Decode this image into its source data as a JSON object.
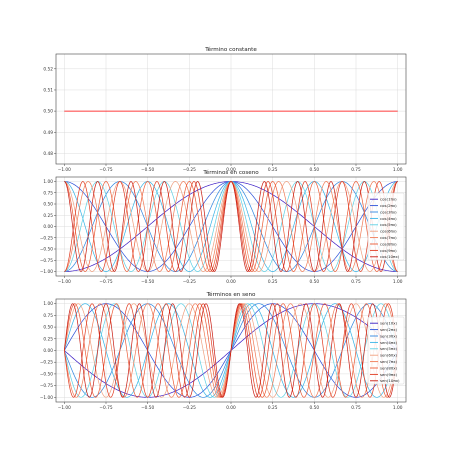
{
  "chart_data": [
    {
      "type": "line",
      "title": "Término constante",
      "xlim": [
        -1.05,
        1.05
      ],
      "ylim": [
        0.475,
        0.527
      ],
      "xticks": [
        -1.0,
        -0.75,
        -0.5,
        -0.25,
        0.0,
        0.25,
        0.5,
        0.75,
        1.0
      ],
      "xtick_labels": [
        "−1.00",
        "−0.75",
        "−0.50",
        "−0.25",
        "0.00",
        "0.25",
        "0.50",
        "0.75",
        "1.00"
      ],
      "yticks": [
        0.48,
        0.49,
        0.5,
        0.51,
        0.52
      ],
      "ytick_labels": [
        "0.48",
        "0.49",
        "0.50",
        "0.51",
        "0.52"
      ],
      "grid": true,
      "legend": null,
      "series": [
        {
          "x": [
            -1.0,
            1.0
          ],
          "values": [
            0.5,
            0.5
          ],
          "color": "#ff0000"
        }
      ]
    },
    {
      "type": "line",
      "title": "Términos en coseno",
      "xlim": [
        -1.05,
        1.05
      ],
      "ylim": [
        -1.1,
        1.1
      ],
      "xticks": [
        -1.0,
        -0.75,
        -0.5,
        -0.25,
        0.0,
        0.25,
        0.5,
        0.75,
        1.0
      ],
      "xtick_labels": [
        "−1.00",
        "−0.75",
        "−0.50",
        "−0.25",
        "0.00",
        "0.25",
        "0.50",
        "0.75",
        "1.00"
      ],
      "yticks": [
        -1.0,
        -0.75,
        -0.5,
        -0.25,
        0.0,
        0.25,
        0.5,
        0.75,
        1.0
      ],
      "ytick_labels": [
        "−1.00",
        "−0.75",
        "−0.50",
        "−0.25",
        "0.00",
        "0.25",
        "0.50",
        "0.75",
        "1.00"
      ],
      "grid": true,
      "legend": "right",
      "function": "cos",
      "series": [
        {
          "name": "cos(1πx)",
          "k": 1,
          "color": "#3b1cc4"
        },
        {
          "name": "cos(2πx)",
          "k": 2,
          "color": "#2a4fd8"
        },
        {
          "name": "cos(3πx)",
          "k": 3,
          "color": "#2f86e0"
        },
        {
          "name": "cos(4πx)",
          "k": 4,
          "color": "#36b3e6"
        },
        {
          "name": "cos(5πx)",
          "k": 5,
          "color": "#5ed0e4"
        },
        {
          "name": "cos(6πx)",
          "k": 6,
          "color": "#f0a080"
        },
        {
          "name": "cos(7πx)",
          "k": 7,
          "color": "#f07a55"
        },
        {
          "name": "cos(8πx)",
          "k": 8,
          "color": "#ec5a35"
        },
        {
          "name": "cos(9πx)",
          "k": 9,
          "color": "#e03a20"
        },
        {
          "name": "cos(10πx)",
          "k": 10,
          "color": "#c81a10"
        }
      ]
    },
    {
      "type": "line",
      "title": "Términos en seno",
      "xlim": [
        -1.05,
        1.05
      ],
      "ylim": [
        -1.1,
        1.1
      ],
      "xticks": [
        -1.0,
        -0.75,
        -0.5,
        -0.25,
        0.0,
        0.25,
        0.5,
        0.75,
        1.0
      ],
      "xtick_labels": [
        "−1.00",
        "−0.75",
        "−0.50",
        "−0.25",
        "0.00",
        "0.25",
        "0.50",
        "0.75",
        "1.00"
      ],
      "yticks": [
        -1.0,
        -0.75,
        -0.5,
        -0.25,
        0.0,
        0.25,
        0.5,
        0.75,
        1.0
      ],
      "ytick_labels": [
        "−1.00",
        "−0.75",
        "−0.50",
        "−0.25",
        "0.00",
        "0.25",
        "0.50",
        "0.75",
        "1.00"
      ],
      "grid": true,
      "legend": "right",
      "function": "sin",
      "series": [
        {
          "name": "sen(1πx)",
          "k": 1,
          "color": "#3b1cc4"
        },
        {
          "name": "sen(2πx)",
          "k": 2,
          "color": "#2a4fd8"
        },
        {
          "name": "sen(3πx)",
          "k": 3,
          "color": "#2f86e0"
        },
        {
          "name": "sen(4πx)",
          "k": 4,
          "color": "#36b3e6"
        },
        {
          "name": "sen(5πx)",
          "k": 5,
          "color": "#5ed0e4"
        },
        {
          "name": "sen(6πx)",
          "k": 6,
          "color": "#f0a080"
        },
        {
          "name": "sen(7πx)",
          "k": 7,
          "color": "#f07a55"
        },
        {
          "name": "sen(8πx)",
          "k": 8,
          "color": "#ec5a35"
        },
        {
          "name": "sen(9πx)",
          "k": 9,
          "color": "#e03a20"
        },
        {
          "name": "sen(10πx)",
          "k": 10,
          "color": "#c81a10"
        }
      ]
    }
  ]
}
